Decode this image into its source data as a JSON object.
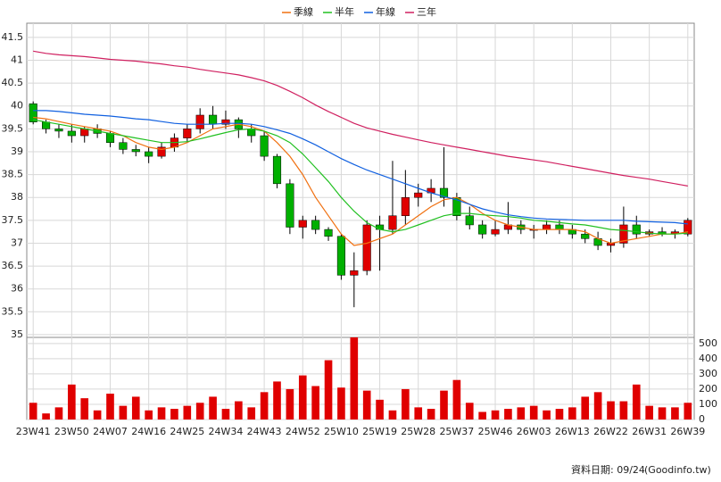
{
  "chart_data": [
    {
      "type": "candlestick",
      "categories": [
        "23W41",
        null,
        null,
        "23W50",
        null,
        null,
        "24W07",
        null,
        null,
        "24W16",
        null,
        null,
        "24W25",
        null,
        null,
        "24W34",
        null,
        null,
        "24W43",
        null,
        null,
        "24W52",
        null,
        null,
        "25W10",
        null,
        null,
        "25W19",
        null,
        null,
        "25W28",
        null,
        null,
        "25W37",
        null,
        null,
        "25W46",
        null,
        null,
        "26W03",
        null,
        null,
        "26W13",
        null,
        null,
        "26W22",
        null,
        null,
        "26W31",
        null,
        null,
        "26W39"
      ],
      "open": [
        40.05,
        39.65,
        39.5,
        39.45,
        39.35,
        39.5,
        39.4,
        39.2,
        39.05,
        39.0,
        38.9,
        39.1,
        39.3,
        39.5,
        39.8,
        39.6,
        39.7,
        39.5,
        39.35,
        38.9,
        38.3,
        37.35,
        37.5,
        37.3,
        37.15,
        36.3,
        36.4,
        37.4,
        37.3,
        37.6,
        38.0,
        38.1,
        38.2,
        38.0,
        37.6,
        37.4,
        37.2,
        37.3,
        37.4,
        37.3,
        37.3,
        37.4,
        37.3,
        37.2,
        37.1,
        36.95,
        37.0,
        37.4,
        37.2,
        37.25,
        37.2,
        37.2
      ],
      "high": [
        40.1,
        39.7,
        39.6,
        39.6,
        39.55,
        39.6,
        39.45,
        39.3,
        39.15,
        39.1,
        39.2,
        39.4,
        39.6,
        39.95,
        40.0,
        39.9,
        39.75,
        39.6,
        39.45,
        38.95,
        38.4,
        37.6,
        37.6,
        37.35,
        37.2,
        36.8,
        37.5,
        37.6,
        38.8,
        38.6,
        38.3,
        38.4,
        39.1,
        38.1,
        37.8,
        37.5,
        37.5,
        37.9,
        37.5,
        37.4,
        37.5,
        37.5,
        37.4,
        37.3,
        37.25,
        37.1,
        37.8,
        37.6,
        37.3,
        37.35,
        37.3,
        37.55
      ],
      "low": [
        39.6,
        39.4,
        39.3,
        39.2,
        39.2,
        39.3,
        39.1,
        38.95,
        38.9,
        38.75,
        38.85,
        39.0,
        39.2,
        39.4,
        39.5,
        39.5,
        39.3,
        39.2,
        38.8,
        38.2,
        37.2,
        37.1,
        37.2,
        37.05,
        36.2,
        35.6,
        36.3,
        36.4,
        37.2,
        37.4,
        37.8,
        37.9,
        37.8,
        37.5,
        37.3,
        37.1,
        37.15,
        37.2,
        37.2,
        37.1,
        37.2,
        37.2,
        37.1,
        37.0,
        36.85,
        36.8,
        36.9,
        37.1,
        37.15,
        37.15,
        37.1,
        37.15
      ],
      "close": [
        39.65,
        39.5,
        39.45,
        39.35,
        39.5,
        39.4,
        39.2,
        39.05,
        39.0,
        38.9,
        39.1,
        39.3,
        39.5,
        39.8,
        39.6,
        39.7,
        39.5,
        39.35,
        38.9,
        38.3,
        37.35,
        37.5,
        37.3,
        37.15,
        36.3,
        36.4,
        37.4,
        37.3,
        37.6,
        38.0,
        38.1,
        38.2,
        38.0,
        37.6,
        37.4,
        37.2,
        37.3,
        37.4,
        37.3,
        37.3,
        37.4,
        37.3,
        37.2,
        37.1,
        36.95,
        37.0,
        37.4,
        37.2,
        37.25,
        37.2,
        37.25,
        37.5
      ],
      "up_color": "#e00000",
      "down_color": "#00b000",
      "series": [
        {
          "name": "季線",
          "color": "#f07010",
          "values": [
            39.75,
            39.72,
            39.66,
            39.6,
            39.55,
            39.5,
            39.45,
            39.35,
            39.2,
            39.1,
            39.05,
            39.1,
            39.2,
            39.35,
            39.5,
            39.55,
            39.6,
            39.55,
            39.45,
            39.2,
            38.9,
            38.5,
            38.0,
            37.6,
            37.2,
            36.95,
            37.0,
            37.1,
            37.2,
            37.4,
            37.6,
            37.8,
            37.95,
            38.0,
            37.85,
            37.65,
            37.5,
            37.4,
            37.35,
            37.3,
            37.3,
            37.3,
            37.3,
            37.25,
            37.1,
            37.0,
            37.05,
            37.1,
            37.15,
            37.2,
            37.2,
            37.25
          ]
        },
        {
          "name": "半年",
          "color": "#20c020",
          "values": [
            39.7,
            39.65,
            39.6,
            39.55,
            39.5,
            39.45,
            39.4,
            39.35,
            39.3,
            39.25,
            39.2,
            39.2,
            39.22,
            39.28,
            39.35,
            39.42,
            39.48,
            39.5,
            39.45,
            39.35,
            39.2,
            38.95,
            38.65,
            38.35,
            38.0,
            37.7,
            37.45,
            37.3,
            37.25,
            37.3,
            37.4,
            37.5,
            37.6,
            37.65,
            37.65,
            37.62,
            37.6,
            37.58,
            37.55,
            37.5,
            37.48,
            37.45,
            37.42,
            37.4,
            37.35,
            37.3,
            37.28,
            37.25,
            37.22,
            37.2,
            37.2,
            37.22
          ]
        },
        {
          "name": "年線",
          "color": "#1060e0",
          "values": [
            39.9,
            39.9,
            39.88,
            39.85,
            39.82,
            39.8,
            39.78,
            39.75,
            39.72,
            39.7,
            39.66,
            39.62,
            39.6,
            39.6,
            39.6,
            39.62,
            39.62,
            39.6,
            39.55,
            39.48,
            39.4,
            39.28,
            39.15,
            39.0,
            38.85,
            38.72,
            38.6,
            38.5,
            38.4,
            38.3,
            38.2,
            38.1,
            38.02,
            37.95,
            37.85,
            37.75,
            37.68,
            37.62,
            37.58,
            37.55,
            37.53,
            37.52,
            37.51,
            37.5,
            37.5,
            37.5,
            37.5,
            37.48,
            37.47,
            37.46,
            37.45,
            37.42
          ]
        },
        {
          "name": "三年",
          "color": "#d02060",
          "values": [
            41.2,
            41.15,
            41.12,
            41.1,
            41.08,
            41.05,
            41.02,
            41.0,
            40.98,
            40.95,
            40.92,
            40.88,
            40.85,
            40.8,
            40.76,
            40.72,
            40.68,
            40.62,
            40.55,
            40.45,
            40.32,
            40.18,
            40.02,
            39.88,
            39.75,
            39.62,
            39.52,
            39.45,
            39.38,
            39.32,
            39.26,
            39.2,
            39.15,
            39.1,
            39.05,
            39.0,
            38.95,
            38.9,
            38.86,
            38.82,
            38.78,
            38.73,
            38.68,
            38.63,
            38.58,
            38.53,
            38.48,
            38.44,
            38.4,
            38.35,
            38.3,
            38.25
          ]
        }
      ],
      "ylim": [
        34.94,
        41.81
      ],
      "yticks": [
        35,
        35.5,
        36,
        36.5,
        37,
        37.5,
        38,
        38.5,
        39,
        39.5,
        40,
        40.5,
        41,
        41.5
      ],
      "grid": true
    },
    {
      "type": "bar",
      "color": "#e00000",
      "values": [
        110,
        40,
        80,
        230,
        140,
        60,
        170,
        90,
        150,
        60,
        80,
        70,
        90,
        110,
        150,
        70,
        120,
        80,
        180,
        250,
        200,
        290,
        220,
        390,
        210,
        540,
        190,
        130,
        60,
        200,
        80,
        70,
        190,
        260,
        110,
        50,
        60,
        70,
        80,
        90,
        60,
        70,
        80,
        150,
        180,
        120,
        120,
        230,
        90,
        80,
        80,
        110
      ],
      "ylim": [
        0,
        540
      ],
      "yticks": [
        0,
        100,
        200,
        300,
        400,
        500
      ],
      "grid": true
    }
  ],
  "footer": {
    "date": "資料日期: 09/24",
    "source": "(Goodinfo.tw)"
  }
}
